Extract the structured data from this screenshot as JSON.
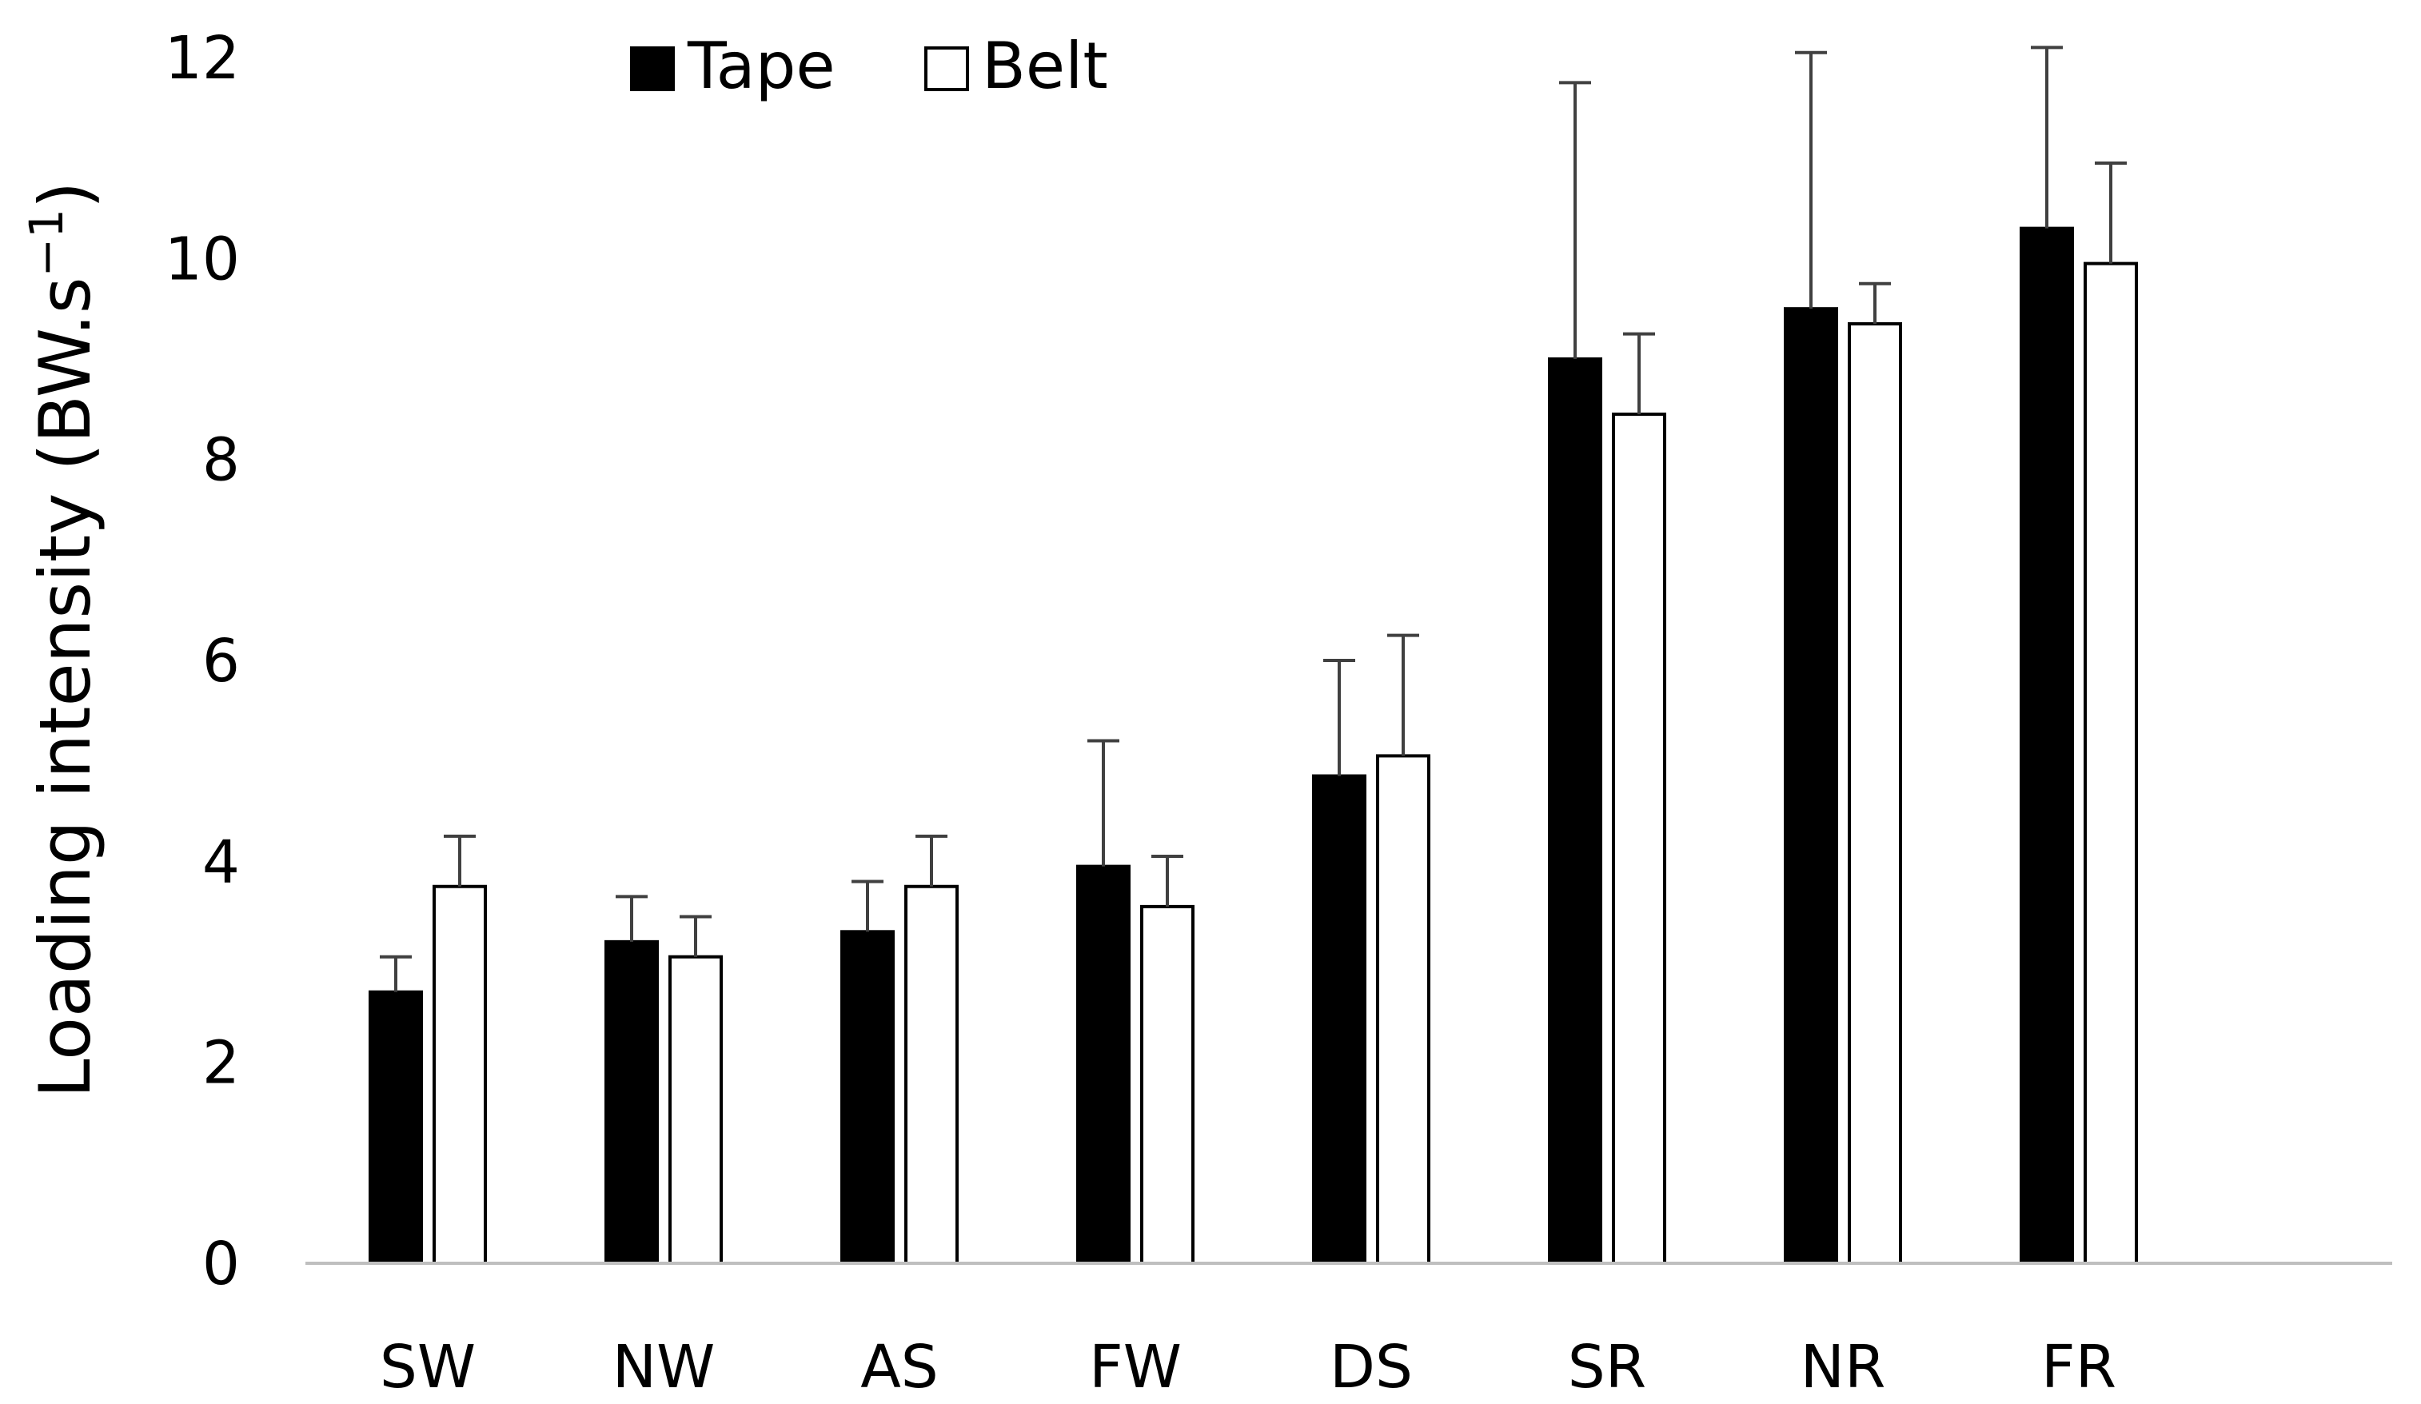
{
  "chart_data": {
    "type": "bar",
    "title": "",
    "xlabel": "",
    "ylabel": "Loading intensity (BW.s",
    "ylabel_superscript": "−1",
    "ylabel_close": ")",
    "ylim": [
      0,
      12
    ],
    "yticks": [
      0,
      2,
      4,
      6,
      8,
      10,
      12
    ],
    "grid": false,
    "legend_position": "top-left",
    "categories": [
      "SW",
      "NW",
      "AS",
      "FW",
      "DS",
      "SR",
      "NR",
      "FR"
    ],
    "series": [
      {
        "name": "Tape",
        "color": "#000000",
        "values": [
          2.7,
          3.2,
          3.3,
          3.95,
          4.85,
          9.0,
          9.5,
          10.3
        ],
        "errors": [
          0.35,
          0.45,
          0.5,
          1.25,
          1.15,
          2.75,
          2.55,
          1.8
        ]
      },
      {
        "name": "Belt",
        "color": "#ffffff",
        "values": [
          3.75,
          3.05,
          3.75,
          3.55,
          5.05,
          8.45,
          9.35,
          9.95
        ],
        "errors": [
          0.5,
          0.4,
          0.5,
          0.5,
          1.2,
          0.8,
          0.4,
          1.0
        ]
      }
    ]
  }
}
